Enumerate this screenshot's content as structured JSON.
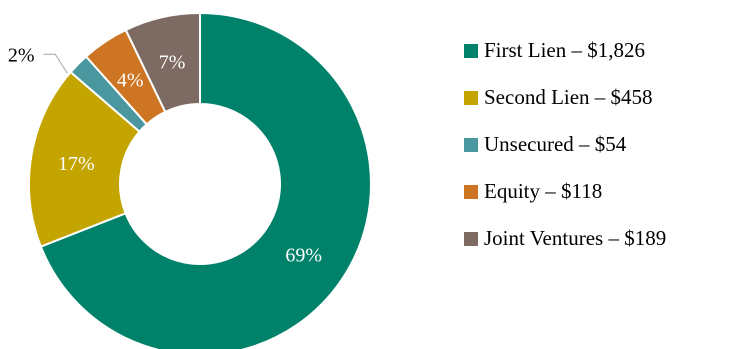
{
  "chart_data": {
    "type": "pie",
    "title": "",
    "categories": [
      "First Lien",
      "Second Lien",
      "Unsecured",
      "Equity",
      "Joint Ventures"
    ],
    "values": [
      1826,
      458,
      54,
      118,
      189
    ],
    "percent_labels": [
      "69%",
      "17%",
      "2%",
      "4%",
      "7%"
    ],
    "legend_labels": [
      "First Lien – $1,826",
      "Second Lien – $458",
      "Unsecured – $54",
      "Equity – $118",
      "Joint Ventures – $189"
    ],
    "colors": [
      "#00826A",
      "#C4A500",
      "#4A97A0",
      "#CD7523",
      "#7D6B63"
    ],
    "donut": true,
    "legend_position": "right"
  }
}
